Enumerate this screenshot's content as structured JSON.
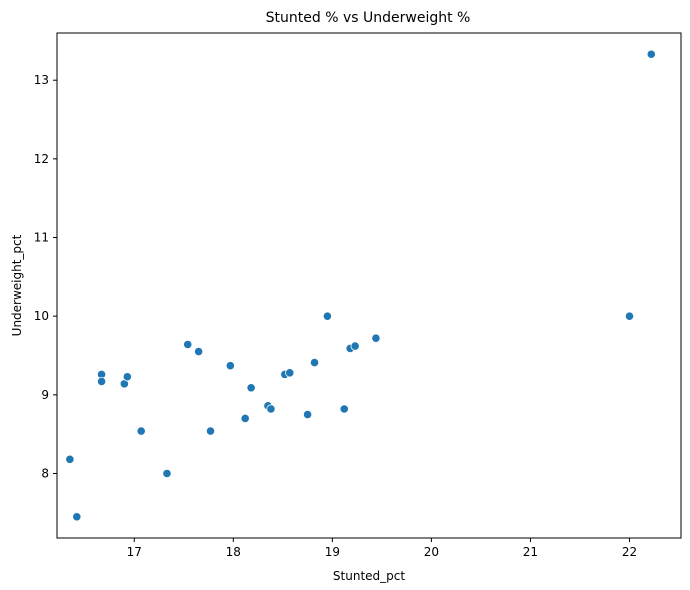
{
  "chart_data": {
    "type": "scatter",
    "title": "Stunted % vs Underweight %",
    "xlabel": "Stunted_pct",
    "ylabel": "Underweight_pct",
    "xlim": [
      16.22,
      22.52
    ],
    "ylim": [
      7.18,
      13.6
    ],
    "xticks": [
      17,
      18,
      19,
      20,
      21,
      22
    ],
    "yticks": [
      8,
      9,
      10,
      11,
      12,
      13
    ],
    "grid": false,
    "point_color": "#1f77b4",
    "points": [
      {
        "x": 16.35,
        "y": 8.18
      },
      {
        "x": 16.42,
        "y": 7.45
      },
      {
        "x": 16.67,
        "y": 9.26
      },
      {
        "x": 16.67,
        "y": 9.17
      },
      {
        "x": 16.9,
        "y": 9.14
      },
      {
        "x": 16.93,
        "y": 9.23
      },
      {
        "x": 17.07,
        "y": 8.54
      },
      {
        "x": 17.33,
        "y": 8.0
      },
      {
        "x": 17.54,
        "y": 9.64
      },
      {
        "x": 17.65,
        "y": 9.55
      },
      {
        "x": 17.77,
        "y": 8.54
      },
      {
        "x": 17.97,
        "y": 9.37
      },
      {
        "x": 18.12,
        "y": 8.7
      },
      {
        "x": 18.18,
        "y": 9.09
      },
      {
        "x": 18.35,
        "y": 8.86
      },
      {
        "x": 18.38,
        "y": 8.82
      },
      {
        "x": 18.52,
        "y": 9.26
      },
      {
        "x": 18.57,
        "y": 9.28
      },
      {
        "x": 18.75,
        "y": 8.75
      },
      {
        "x": 18.82,
        "y": 9.41
      },
      {
        "x": 18.95,
        "y": 10.0
      },
      {
        "x": 19.12,
        "y": 8.82
      },
      {
        "x": 19.18,
        "y": 9.59
      },
      {
        "x": 19.23,
        "y": 9.62
      },
      {
        "x": 19.44,
        "y": 9.72
      },
      {
        "x": 22.0,
        "y": 10.0
      },
      {
        "x": 22.22,
        "y": 13.33
      }
    ]
  }
}
